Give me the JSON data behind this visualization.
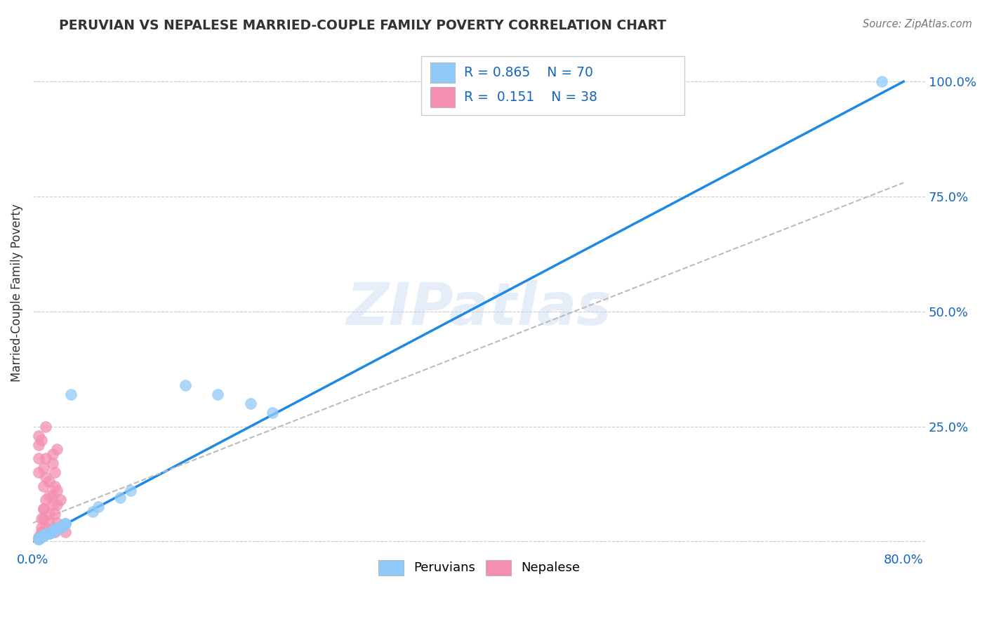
{
  "title": "PERUVIAN VS NEPALESE MARRIED-COUPLE FAMILY POVERTY CORRELATION CHART",
  "source": "Source: ZipAtlas.com",
  "ylabel": "Married-Couple Family Poverty",
  "xlim": [
    0.0,
    0.82
  ],
  "ylim": [
    -0.02,
    1.1
  ],
  "blue_R": 0.865,
  "blue_N": 70,
  "pink_R": 0.151,
  "pink_N": 38,
  "blue_color": "#90CAF9",
  "pink_color": "#F48FB1",
  "blue_line_color": "#1E88E5",
  "watermark": "ZIPatlas",
  "legend_label_blue": "Peruvians",
  "legend_label_pink": "Nepalese",
  "ytick_positions": [
    0.0,
    0.25,
    0.5,
    0.75,
    1.0
  ],
  "ytick_labels": [
    "",
    "25.0%",
    "50.0%",
    "75.0%",
    "100.0%"
  ]
}
